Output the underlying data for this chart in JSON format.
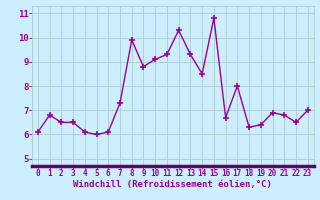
{
  "x": [
    0,
    1,
    2,
    3,
    4,
    5,
    6,
    7,
    8,
    9,
    10,
    11,
    12,
    13,
    14,
    15,
    16,
    17,
    18,
    19,
    20,
    21,
    22,
    23
  ],
  "y": [
    6.1,
    6.8,
    6.5,
    6.5,
    6.1,
    6.0,
    6.1,
    7.3,
    9.9,
    8.8,
    9.1,
    9.3,
    10.3,
    9.3,
    8.5,
    10.8,
    6.7,
    8.0,
    6.3,
    6.4,
    6.9,
    6.8,
    6.5,
    7.0
  ],
  "line_color": "#990099",
  "marker": "+",
  "marker_size": 4,
  "marker_lw": 1.2,
  "line_width": 1.0,
  "bg_color": "#cceeff",
  "grid_color": "#aacccc",
  "xlabel": "Windchill (Refroidissement éolien,°C)",
  "xlabel_color": "#990099",
  "xlabel_fontsize": 6.5,
  "yticks": [
    5,
    6,
    7,
    8,
    9,
    10,
    11
  ],
  "ylim": [
    4.7,
    11.3
  ],
  "xlim": [
    -0.5,
    23.5
  ],
  "xtick_fontsize": 5.5,
  "ytick_fontsize": 6.5,
  "axis_color": "#990099",
  "spine_color": "#990099",
  "bottom_spine_color": "#660066",
  "fig_width": 3.2,
  "fig_height": 2.0,
  "dpi": 100
}
